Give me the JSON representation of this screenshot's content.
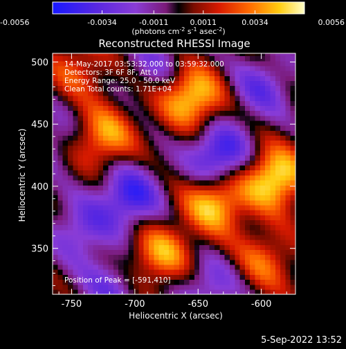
{
  "chart_data": {
    "type": "heatmap",
    "title": "Reconstructed RHESSI Image",
    "xlabel": "Heliocentric X (arcsec)",
    "ylabel": "Heliocentric Y (arcsec)",
    "xlim": [
      -765,
      -573
    ],
    "ylim": [
      313,
      507
    ],
    "x_ticks": [
      -750,
      -700,
      -650,
      -600
    ],
    "y_ticks": [
      350,
      400,
      450,
      500
    ],
    "colorbar": {
      "range": [
        -0.0056,
        0.0056
      ],
      "ticks": [
        "-0.0056",
        "-0.0034",
        "-0.0011",
        "0.0011",
        "0.0034",
        "0.0056"
      ],
      "units_prefix": "(photons cm",
      "units_exp1": "-2",
      "units_mid": " s",
      "units_exp2": "-1",
      "units_mid2": " asec",
      "units_exp3": "-2",
      "units_suffix": ")"
    },
    "info": [
      "14-May-2017 03:53:32.000 to 03:59:32.000",
      "Detectors: 3F 6F 8F, Att 0",
      "Energy Range: 25.0 - 50.0 keV",
      "Clean     Total counts: 1.71E+04"
    ],
    "peak_label": "Position of Peak = [-591,410]",
    "peak": [
      -591,
      410
    ],
    "sources": [
      {
        "x": -590,
        "y": 407,
        "value": 0.0056
      },
      {
        "x": -655,
        "y": 472,
        "value": 0.0052
      },
      {
        "x": -637,
        "y": 387,
        "value": 0.0048
      },
      {
        "x": -725,
        "y": 440,
        "value": 0.004
      },
      {
        "x": -680,
        "y": 345,
        "value": 0.004
      },
      {
        "x": -598,
        "y": 340,
        "value": 0.0028
      },
      {
        "x": -745,
        "y": 495,
        "value": 0.0024
      },
      {
        "x": -633,
        "y": 425,
        "value": -0.005
      },
      {
        "x": -704,
        "y": 392,
        "value": -0.0045
      },
      {
        "x": -742,
        "y": 365,
        "value": -0.003
      },
      {
        "x": -640,
        "y": 320,
        "value": -0.0028
      },
      {
        "x": -600,
        "y": 480,
        "value": -0.003
      },
      {
        "x": -720,
        "y": 320,
        "value": -0.0025
      },
      {
        "x": -765,
        "y": 440,
        "value": -0.002
      },
      {
        "x": -683,
        "y": 500,
        "value": -0.002
      }
    ]
  },
  "timestamp": "5-Sep-2022 13:52"
}
